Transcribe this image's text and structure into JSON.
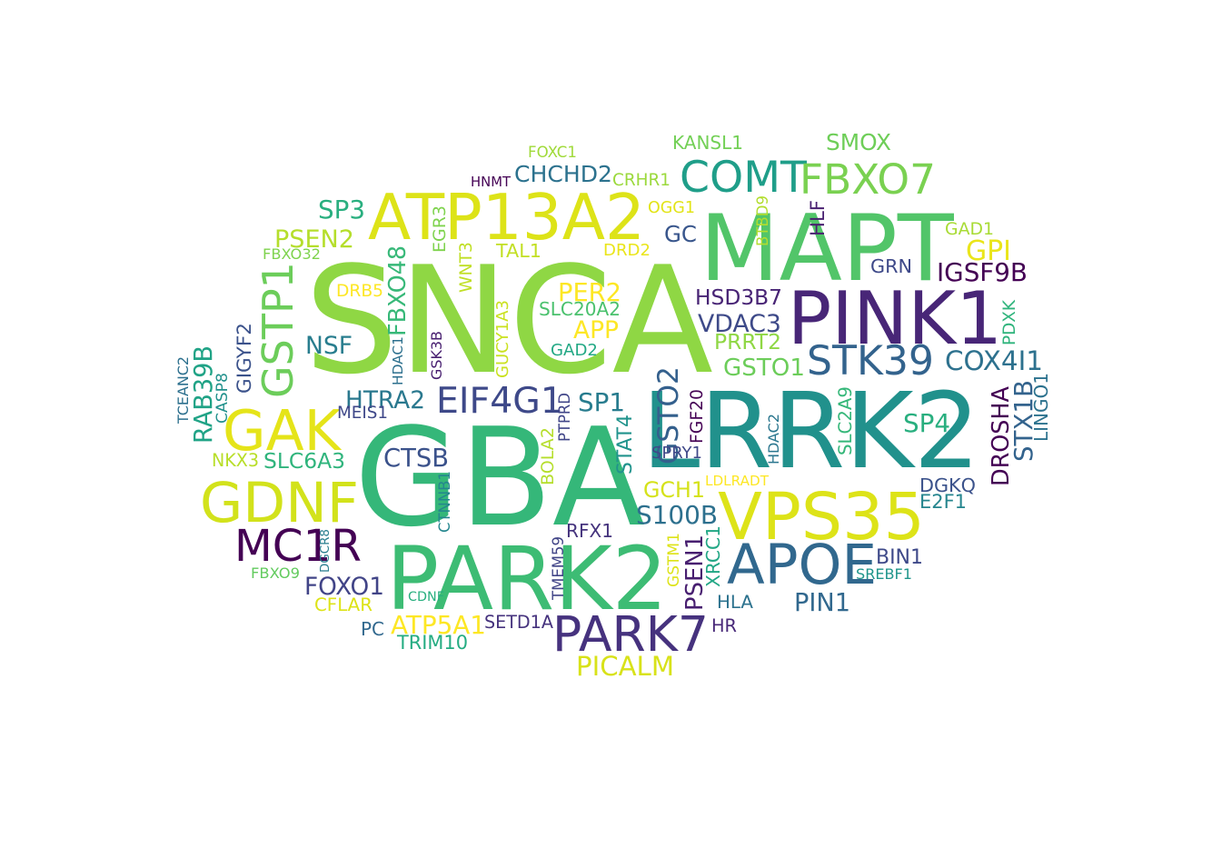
{
  "palette": {
    "dark_purple": "#440154",
    "purple": "#472d7b",
    "indigo": "#3b528b",
    "blue": "#2c728e",
    "teal": "#21918c",
    "green_teal": "#28ae80",
    "green": "#5ec962",
    "lime": "#addc30",
    "yellow": "#e0e21a"
  },
  "words": [
    {
      "text": "SNCA",
      "color": "#8fd744"
    },
    {
      "text": "GBA",
      "color": "#35b779"
    },
    {
      "text": "LRRK2",
      "color": "#21918c"
    },
    {
      "text": "MAPT",
      "color": "#52c569"
    },
    {
      "text": "PARK2",
      "color": "#3dbc74"
    },
    {
      "text": "PINK1",
      "color": "#482677"
    },
    {
      "text": "ATP13A2",
      "color": "#dde318"
    },
    {
      "text": "VPS35",
      "color": "#dde318"
    },
    {
      "text": "GDNF",
      "color": "#d2e21b"
    },
    {
      "text": "GAK",
      "color": "#e5e419"
    },
    {
      "text": "APOE",
      "color": "#31688e"
    },
    {
      "text": "PARK7",
      "color": "#46327e"
    },
    {
      "text": "COMT",
      "color": "#1f9e89"
    },
    {
      "text": "FBXO7",
      "color": "#7ad151"
    },
    {
      "text": "MC1R",
      "color": "#440154"
    },
    {
      "text": "GSTP1",
      "color": "#6ccd5a"
    },
    {
      "text": "STK39",
      "color": "#33638d"
    },
    {
      "text": "EIF4G1",
      "color": "#3e4989"
    },
    {
      "text": "SP3",
      "color": "#29af7f"
    },
    {
      "text": "PSEN2",
      "color": "#b5de2b"
    },
    {
      "text": "NSF",
      "color": "#287d8e"
    },
    {
      "text": "HTRA2",
      "color": "#2a788e"
    },
    {
      "text": "SLC6A3",
      "color": "#2fb47c"
    },
    {
      "text": "CTSB",
      "color": "#3b528b"
    },
    {
      "text": "FOXO1",
      "color": "#414487"
    },
    {
      "text": "CFLAR",
      "color": "#dde318"
    },
    {
      "text": "PC",
      "color": "#31688e"
    },
    {
      "text": "ATP5A1",
      "color": "#fde725"
    },
    {
      "text": "TRIM10",
      "color": "#25ac82"
    },
    {
      "text": "SETD1A",
      "color": "#46337e"
    },
    {
      "text": "PICALM",
      "color": "#d8e219"
    },
    {
      "text": "CHCHD2",
      "color": "#2c728e"
    },
    {
      "text": "CRHR1",
      "color": "#9bd93c"
    },
    {
      "text": "KANSL1",
      "color": "#73d056"
    },
    {
      "text": "SMOX",
      "color": "#6ece58"
    },
    {
      "text": "FOXC1",
      "color": "#a0da39"
    },
    {
      "text": "HNMT",
      "color": "#440154"
    },
    {
      "text": "OGG1",
      "color": "#e2e418"
    },
    {
      "text": "GC",
      "color": "#39568c"
    },
    {
      "text": "TAL1",
      "color": "#c2df23"
    },
    {
      "text": "DRD2",
      "color": "#eae51a"
    },
    {
      "text": "PER2",
      "color": "#fde725"
    },
    {
      "text": "SLC20A2",
      "color": "#4ac16d"
    },
    {
      "text": "APP",
      "color": "#fde725"
    },
    {
      "text": "GAD2",
      "color": "#22a884"
    },
    {
      "text": "HSD3B7",
      "color": "#482475"
    },
    {
      "text": "VDAC3",
      "color": "#3e4a89"
    },
    {
      "text": "PRRT2",
      "color": "#8fd744"
    },
    {
      "text": "GSTO1",
      "color": "#6ccd5a"
    },
    {
      "text": "SP1",
      "color": "#287c8e"
    },
    {
      "text": "GSTO2",
      "color": "#34608d"
    },
    {
      "text": "FGF20",
      "color": "#440154"
    },
    {
      "text": "SPRY1",
      "color": "#3f4788"
    },
    {
      "text": "GCH1",
      "color": "#d5e21a"
    },
    {
      "text": "S100B",
      "color": "#2d708e"
    },
    {
      "text": "LDLRADT",
      "color": "#fde725"
    },
    {
      "text": "RFX1",
      "color": "#45337d"
    },
    {
      "text": "PSEN1",
      "color": "#481f70"
    },
    {
      "text": "XRCC1",
      "color": "#22a785"
    },
    {
      "text": "GSTM1",
      "color": "#dde318"
    },
    {
      "text": "HLA",
      "color": "#2c728e"
    },
    {
      "text": "HR",
      "color": "#482878"
    },
    {
      "text": "PIN1",
      "color": "#31688e"
    },
    {
      "text": "BIN1",
      "color": "#3e4989"
    },
    {
      "text": "SREBF1",
      "color": "#1f958b"
    },
    {
      "text": "DGKQ",
      "color": "#3b528b"
    },
    {
      "text": "E2F1",
      "color": "#25858e"
    },
    {
      "text": "SP4",
      "color": "#29af7f"
    },
    {
      "text": "DROSHA",
      "color": "#440154"
    },
    {
      "text": "STX1B",
      "color": "#33638d"
    },
    {
      "text": "LINGO1",
      "color": "#2c728e"
    },
    {
      "text": "COX4I1",
      "color": "#2d718e"
    },
    {
      "text": "PDXK",
      "color": "#2fb47c"
    },
    {
      "text": "GPI",
      "color": "#eae51a"
    },
    {
      "text": "IGSF9B",
      "color": "#440154"
    },
    {
      "text": "GRN",
      "color": "#3e4989"
    },
    {
      "text": "GAD1",
      "color": "#a8db34"
    },
    {
      "text": "HLF",
      "color": "#481f70"
    },
    {
      "text": "BTBD9",
      "color": "#b2dd2d"
    },
    {
      "text": "SLC2A9",
      "color": "#35b779"
    },
    {
      "text": "HDAC2",
      "color": "#2a768e"
    },
    {
      "text": "STAT4",
      "color": "#20938c"
    },
    {
      "text": "BOLA2",
      "color": "#b5de2b"
    },
    {
      "text": "PTPRD",
      "color": "#404588"
    },
    {
      "text": "CTNNB1",
      "color": "#24868e"
    },
    {
      "text": "TMEM59",
      "color": "#414487"
    },
    {
      "text": "CDNF",
      "color": "#29af7f"
    },
    {
      "text": "DGCR8",
      "color": "#287d8e"
    },
    {
      "text": "FBXO9",
      "color": "#63cb5f"
    },
    {
      "text": "NKX3",
      "color": "#b8de29"
    },
    {
      "text": "CASP8",
      "color": "#21918c"
    },
    {
      "text": "RAB39B",
      "color": "#20a386"
    },
    {
      "text": "TCEANC2",
      "color": "#2d708e"
    },
    {
      "text": "GIGYF2",
      "color": "#3b528b"
    },
    {
      "text": "FBXO32",
      "color": "#7fd34e"
    },
    {
      "text": "DRB5",
      "color": "#fde725"
    },
    {
      "text": "FBXO48",
      "color": "#37b878"
    },
    {
      "text": "HDAC1",
      "color": "#2d708e"
    },
    {
      "text": "GSK3B",
      "color": "#481f70"
    },
    {
      "text": "GUCY1A3",
      "color": "#cae11f"
    },
    {
      "text": "WNT3",
      "color": "#c0df25"
    },
    {
      "text": "EGR3",
      "color": "#7fd34e"
    },
    {
      "text": "MEIS1",
      "color": "#3f4889"
    }
  ]
}
